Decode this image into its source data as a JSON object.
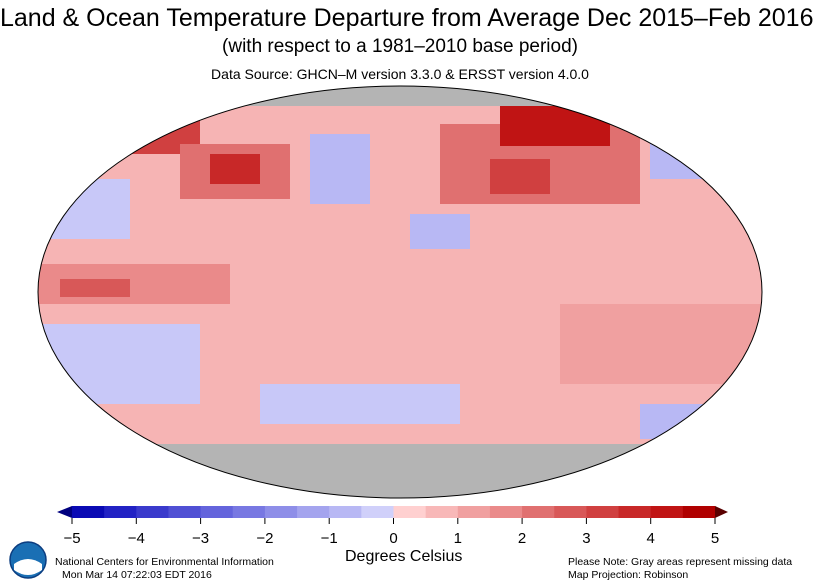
{
  "header": {
    "title": "Land & Ocean Temperature Departure from Average Dec 2015–Feb 2016",
    "subtitle": "(with respect to a 1981–2010 base period)",
    "data_source": "Data Source: GHCN–M version 3.3.0 & ERSST version 4.0.0"
  },
  "map": {
    "projection": "Robinson",
    "missing_color": "#b4b4b4",
    "coastline_color": "#000000"
  },
  "colorbar": {
    "ticks": [
      "−5",
      "−4",
      "−3",
      "−2",
      "−1",
      "0",
      "1",
      "2",
      "3",
      "4",
      "5"
    ],
    "range": [
      -5,
      5
    ],
    "step": 0.5,
    "colors": [
      "#0a0ab4",
      "#2222c4",
      "#3a3acc",
      "#5050d4",
      "#6464dc",
      "#7878e2",
      "#8e8ee8",
      "#a4a4ee",
      "#b8b8f4",
      "#d0d0fa",
      "#ffd0d0",
      "#f8b8b8",
      "#f0a0a0",
      "#ea8a8a",
      "#e07070",
      "#d85858",
      "#d04040",
      "#c82828",
      "#c01414",
      "#b00000"
    ],
    "under_color": "#00007f",
    "over_color": "#5a0000",
    "units": "Degrees Celsius"
  },
  "footer": {
    "organization": "National Centers for Environmental Information",
    "timestamp": "Mon Mar 14 07:22:03 EDT 2016",
    "note": "Please Note: Gray areas represent missing data",
    "projection_label": "Map Projection: Robinson",
    "logo_icon": "noaa-logo-icon"
  }
}
